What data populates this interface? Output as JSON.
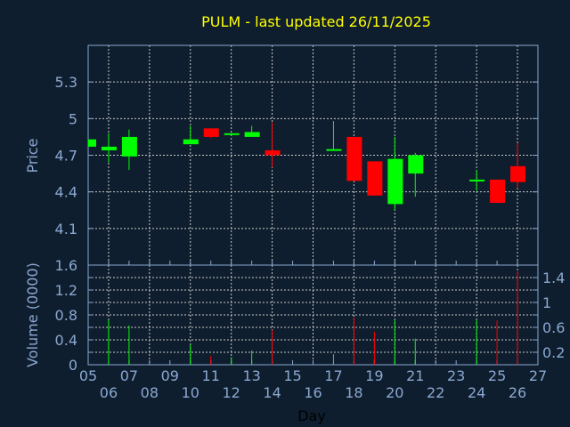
{
  "colors": {
    "background": "#0f1e2e",
    "axis": "#8aa8d0",
    "grid": "#c8c8c8",
    "up": "#00ff00",
    "down": "#ff0000",
    "title": "#ffff00",
    "xlabel": "#000000"
  },
  "chart_data": [
    {
      "type": "candlestick",
      "title": "PULM - last updated 26/11/2025",
      "ylabel": "Price",
      "ylim": [
        3.8,
        5.6
      ],
      "yticks": [
        "4.1",
        "4.4",
        "4.7",
        "5",
        "5.3"
      ],
      "grid": true,
      "candles": [
        {
          "day": "05",
          "open": 4.77,
          "high": 4.83,
          "low": 4.77,
          "close": 4.83
        },
        {
          "day": "06",
          "open": 4.74,
          "high": 4.88,
          "low": 4.64,
          "close": 4.77
        },
        {
          "day": "07",
          "open": 4.69,
          "high": 4.91,
          "low": 4.58,
          "close": 4.85
        },
        {
          "day": "10",
          "open": 4.79,
          "high": 4.94,
          "low": 4.79,
          "close": 4.83
        },
        {
          "day": "11",
          "open": 4.92,
          "high": 4.92,
          "low": 4.84,
          "close": 4.85
        },
        {
          "day": "12",
          "open": 4.87,
          "high": 4.88,
          "low": 4.87,
          "close": 4.88
        },
        {
          "day": "13",
          "open": 4.85,
          "high": 4.94,
          "low": 4.85,
          "close": 4.89
        },
        {
          "day": "14",
          "open": 4.74,
          "high": 4.97,
          "low": 4.6,
          "close": 4.7
        },
        {
          "day": "17",
          "open": 4.74,
          "high": 4.98,
          "low": 4.74,
          "close": 4.75
        },
        {
          "day": "18",
          "open": 4.85,
          "high": 4.85,
          "low": 4.49,
          "close": 4.49
        },
        {
          "day": "19",
          "open": 4.65,
          "high": 4.65,
          "low": 4.37,
          "close": 4.37
        },
        {
          "day": "20",
          "open": 4.3,
          "high": 4.85,
          "low": 4.25,
          "close": 4.67
        },
        {
          "day": "21",
          "open": 4.55,
          "high": 4.72,
          "low": 4.36,
          "close": 4.7
        },
        {
          "day": "24",
          "open": 4.5,
          "high": 4.58,
          "low": 4.41,
          "close": 4.5
        },
        {
          "day": "25",
          "open": 4.5,
          "high": 4.5,
          "low": 4.31,
          "close": 4.31
        },
        {
          "day": "26",
          "open": 4.61,
          "high": 4.8,
          "low": 4.43,
          "close": 4.48
        }
      ]
    },
    {
      "type": "bar",
      "ylabel": "Volume (0000)",
      "xlabel": "Day",
      "ylim": [
        0,
        1.6
      ],
      "yticks": [
        "0",
        "0.2",
        "0.4",
        "0.6",
        "0.8",
        "1",
        "1.2",
        "1.4",
        "1.6"
      ],
      "categories": [
        "05",
        "06",
        "07",
        "08",
        "09",
        "10",
        "11",
        "12",
        "13",
        "14",
        "15",
        "16",
        "17",
        "18",
        "19",
        "20",
        "21",
        "22",
        "23",
        "24",
        "25",
        "26",
        "27"
      ],
      "grid": true,
      "volumes": [
        {
          "day": "06",
          "value": 0.72,
          "dir": "up"
        },
        {
          "day": "07",
          "value": 0.63,
          "dir": "up"
        },
        {
          "day": "10",
          "value": 0.32,
          "dir": "up"
        },
        {
          "day": "11",
          "value": 0.14,
          "dir": "down"
        },
        {
          "day": "12",
          "value": 0.12,
          "dir": "up"
        },
        {
          "day": "13",
          "value": 0.23,
          "dir": "up"
        },
        {
          "day": "14",
          "value": 0.56,
          "dir": "down"
        },
        {
          "day": "17",
          "value": 0.17,
          "dir": "up"
        },
        {
          "day": "18",
          "value": 0.76,
          "dir": "down"
        },
        {
          "day": "19",
          "value": 0.53,
          "dir": "down"
        },
        {
          "day": "20",
          "value": 0.72,
          "dir": "up"
        },
        {
          "day": "21",
          "value": 0.42,
          "dir": "up"
        },
        {
          "day": "24",
          "value": 0.72,
          "dir": "up"
        },
        {
          "day": "25",
          "value": 0.71,
          "dir": "down"
        },
        {
          "day": "26",
          "value": 1.5,
          "dir": "down"
        }
      ]
    }
  ]
}
